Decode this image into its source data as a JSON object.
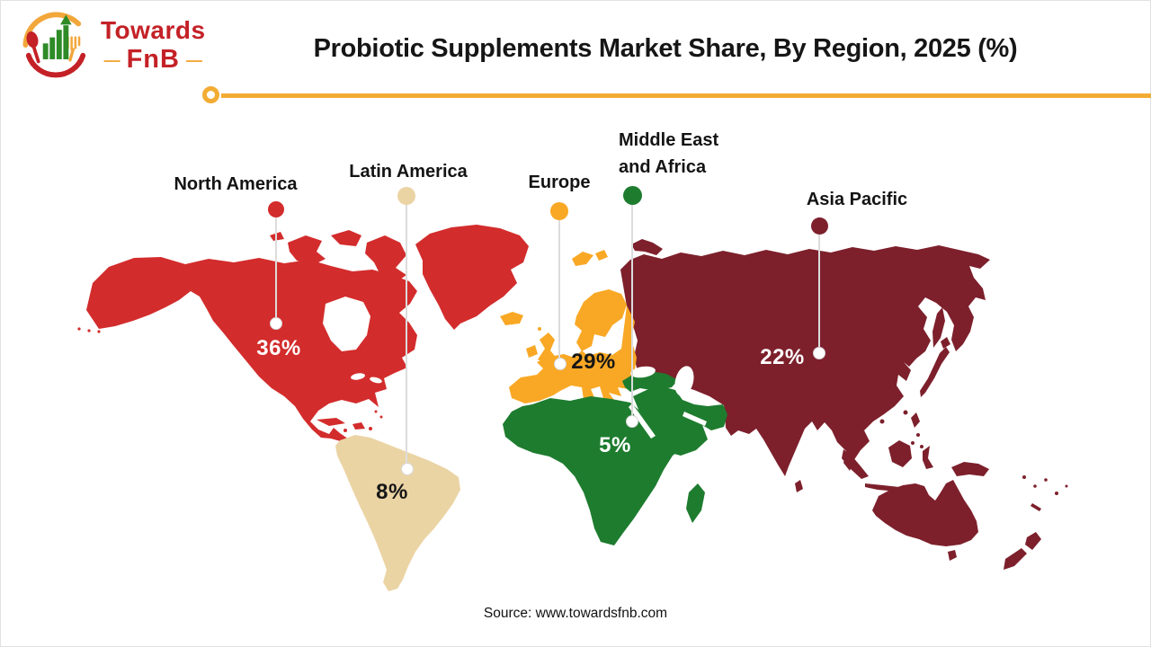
{
  "header": {
    "logo": {
      "line1": "Towards",
      "line2": "FnB",
      "dash": "—"
    },
    "title": "Probiotic Supplements Market Share, By Region, 2025 (%)"
  },
  "footer": {
    "source": "Source: www.towardsfnb.com"
  },
  "colors": {
    "accent_rule": "#F2AC33",
    "leader_line": "#DCDCDC",
    "logo_red": "#C42127",
    "logo_orange": "#F2A73B",
    "logo_green": "#2E8B27",
    "title_text": "#161616"
  },
  "chart_data": {
    "type": "heatmap",
    "map_kind": "world-choropleth",
    "title": "Probiotic Supplements Market Share, By Region, 2025 (%)",
    "year": 2025,
    "unit": "% market share",
    "legend_position": "labels-above-map-with-leader-lines",
    "regions": [
      {
        "name": "North America",
        "value": 36,
        "value_label": "36%",
        "color": "#D32C2C",
        "pct_text_color": "#FFFFFF"
      },
      {
        "name": "Latin America",
        "value": 8,
        "value_label": "8%",
        "color": "#EBD4A4",
        "pct_text_color": "#161616"
      },
      {
        "name": "Europe",
        "value": 29,
        "value_label": "29%",
        "color": "#F9A825",
        "pct_text_color": "#161616"
      },
      {
        "name": "Middle East and Africa",
        "value": 5,
        "value_label": "5%",
        "color": "#1E7C2F",
        "pct_text_color": "#FFFFFF"
      },
      {
        "name": "Asia Pacific",
        "value": 22,
        "value_label": "22%",
        "color": "#7D202C",
        "pct_text_color": "#FFFFFF"
      }
    ]
  }
}
